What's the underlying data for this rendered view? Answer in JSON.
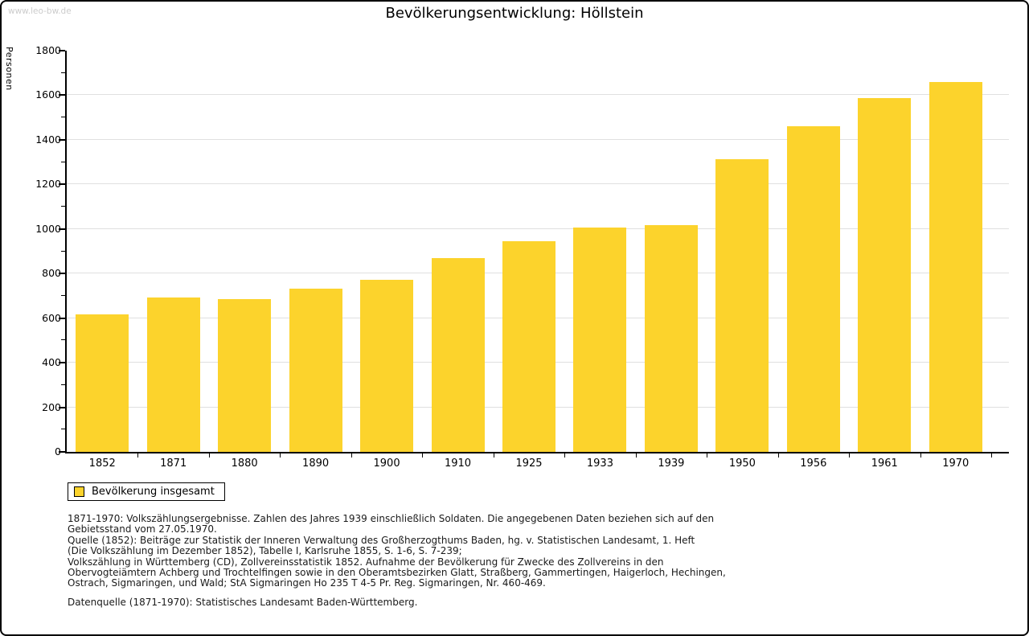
{
  "watermark": "www.leo-bw.de",
  "title": "Bevölkerungsentwicklung: Höllstein",
  "legend": {
    "label": "Bevölkerung insgesamt",
    "swatch_color": "#FCD32C"
  },
  "footnote_lines": [
    "1871-1970: Volkszählungsergebnisse. Zahlen des Jahres 1939 einschließlich Soldaten. Die angegebenen Daten beziehen sich auf den",
    "Gebietsstand vom 27.05.1970.",
    "Quelle (1852): Beiträge zur Statistik der Inneren Verwaltung des Großherzogthums Baden, hg. v. Statistischen Landesamt, 1. Heft",
    "(Die Volkszählung im Dezember 1852), Tabelle I, Karlsruhe 1855, S. 1-6, S. 7-239;",
    "Volkszählung in Württemberg (CD), Zollvereinsstatistik 1852. Aufnahme der Bevölkerung für Zwecke des Zollvereins in den",
    "Obervogteiämtern Achberg und Trochtelfingen sowie in den Oberamtsbezirken Glatt, Straßberg, Gammertingen, Haigerloch, Hechingen,",
    "Ostrach, Sigmaringen, und Wald; StA Sigmaringen Ho 235 T 4-5 Pr. Reg. Sigmaringen, Nr. 460-469."
  ],
  "source_line": "Datenquelle (1871-1970): Statistisches Landesamt Baden-Württemberg.",
  "chart_data": {
    "type": "bar",
    "title": "Bevölkerungsentwicklung: Höllstein",
    "xlabel": "",
    "ylabel": "Personen",
    "categories": [
      "1852",
      "1871",
      "1880",
      "1890",
      "1900",
      "1910",
      "1925",
      "1933",
      "1939",
      "1950",
      "1956",
      "1961",
      "1970"
    ],
    "series": [
      {
        "name": "Bevölkerung insgesamt",
        "values": [
          616,
          694,
          687,
          733,
          772,
          868,
          944,
          1008,
          1016,
          1312,
          1460,
          1586,
          1661
        ]
      }
    ],
    "ylim": [
      0,
      1800
    ],
    "ytick_interval_major": 200,
    "ytick_interval_minor": 100,
    "grid": true,
    "gridline_color": "#E0E0E0",
    "bar_color": "#FCD32C",
    "axis_color": "#000000",
    "legend_position": "bottom-left"
  }
}
